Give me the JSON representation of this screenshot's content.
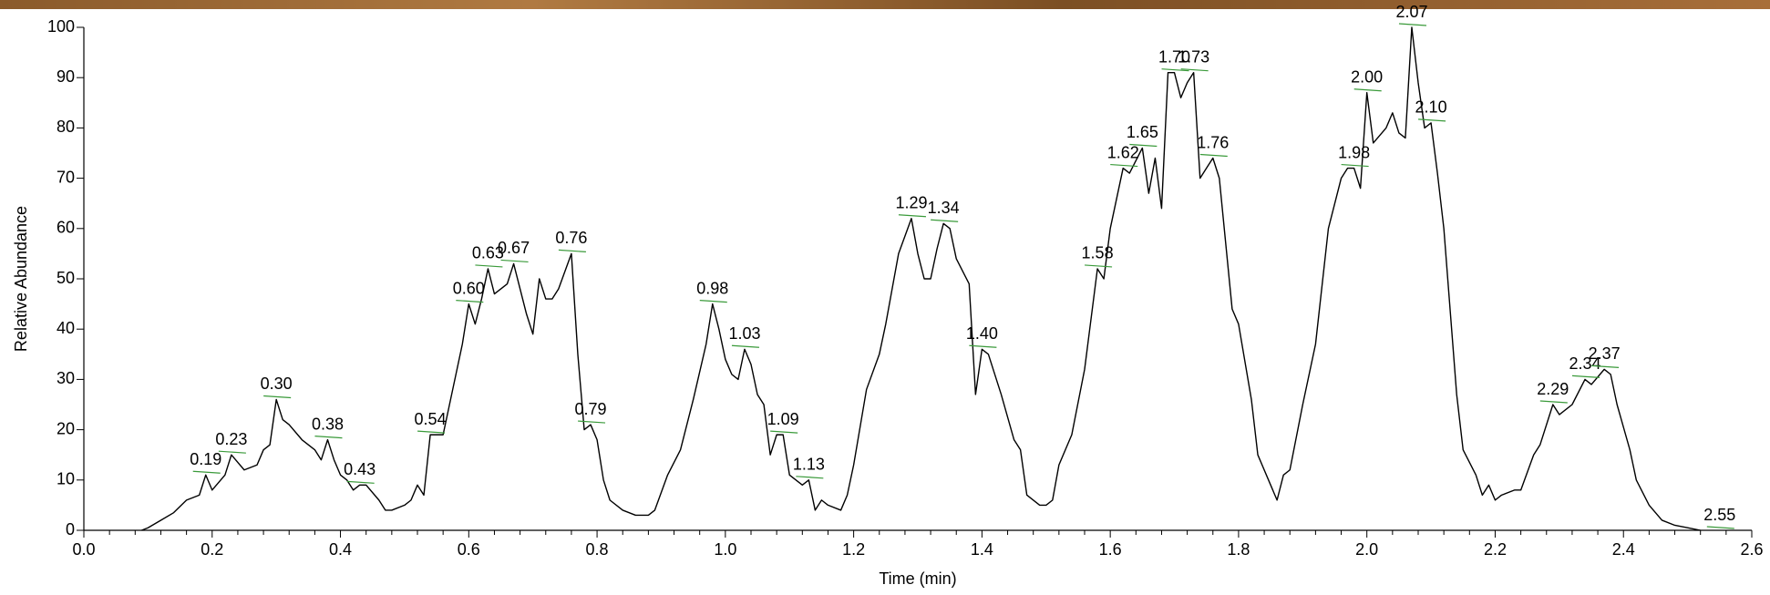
{
  "chart_data": {
    "type": "line",
    "xlabel": "Time (min)",
    "ylabel": "Relative Abundance",
    "color": "#000000",
    "xlim": [
      0,
      2.6
    ],
    "xticks": [
      {
        "value": 0,
        "label": "0.0"
      },
      0.2,
      0.4,
      0.6,
      0.8,
      {
        "value": 1,
        "label": "1.0"
      },
      1.2,
      1.4,
      1.6,
      1.8,
      {
        "value": 2,
        "label": "2.0"
      },
      2.2,
      2.4,
      2.6
    ],
    "ylim": [
      0,
      100
    ],
    "yticks": [
      0,
      10,
      20,
      30,
      40,
      50,
      60,
      70,
      80,
      90,
      100
    ],
    "x": [
      0.09,
      0.1,
      0.12,
      0.14,
      0.16,
      0.18,
      0.19,
      0.2,
      0.22,
      0.23,
      0.25,
      0.27,
      0.28,
      0.29,
      0.3,
      0.31,
      0.32,
      0.34,
      0.36,
      0.37,
      0.38,
      0.39,
      0.4,
      0.41,
      0.42,
      0.43,
      0.44,
      0.46,
      0.47,
      0.48,
      0.5,
      0.51,
      0.52,
      0.53,
      0.54,
      0.55,
      0.56,
      0.57,
      0.59,
      0.6,
      0.61,
      0.62,
      0.63,
      0.64,
      0.66,
      0.67,
      0.68,
      0.69,
      0.7,
      0.71,
      0.72,
      0.73,
      0.74,
      0.76,
      0.77,
      0.78,
      0.79,
      0.8,
      0.81,
      0.82,
      0.84,
      0.86,
      0.88,
      0.89,
      0.91,
      0.93,
      0.95,
      0.97,
      0.98,
      0.99,
      1.0,
      1.01,
      1.02,
      1.03,
      1.04,
      1.05,
      1.06,
      1.07,
      1.08,
      1.09,
      1.1,
      1.11,
      1.12,
      1.13,
      1.14,
      1.15,
      1.16,
      1.18,
      1.19,
      1.2,
      1.22,
      1.24,
      1.25,
      1.27,
      1.29,
      1.3,
      1.31,
      1.32,
      1.33,
      1.34,
      1.35,
      1.36,
      1.38,
      1.39,
      1.4,
      1.41,
      1.43,
      1.45,
      1.46,
      1.47,
      1.49,
      1.5,
      1.51,
      1.52,
      1.54,
      1.56,
      1.58,
      1.59,
      1.6,
      1.61,
      1.62,
      1.63,
      1.65,
      1.66,
      1.67,
      1.68,
      1.69,
      1.7,
      1.71,
      1.72,
      1.73,
      1.74,
      1.75,
      1.76,
      1.77,
      1.79,
      1.8,
      1.82,
      1.83,
      1.85,
      1.86,
      1.87,
      1.88,
      1.9,
      1.92,
      1.94,
      1.96,
      1.97,
      1.98,
      1.99,
      2.0,
      2.01,
      2.03,
      2.04,
      2.05,
      2.06,
      2.07,
      2.08,
      2.09,
      2.1,
      2.11,
      2.12,
      2.14,
      2.15,
      2.17,
      2.18,
      2.19,
      2.2,
      2.21,
      2.23,
      2.24,
      2.26,
      2.27,
      2.29,
      2.3,
      2.32,
      2.34,
      2.35,
      2.37,
      2.38,
      2.39,
      2.41,
      2.42,
      2.44,
      2.46,
      2.48,
      2.5,
      2.52
    ],
    "values": [
      0,
      0.5,
      2,
      3.5,
      6,
      7,
      11,
      8,
      11,
      15,
      12,
      13,
      16,
      17,
      26,
      22,
      21,
      18,
      16,
      14,
      18,
      14,
      11,
      10,
      8,
      9,
      9,
      6,
      4,
      4,
      5,
      6,
      9,
      7,
      19,
      19,
      19,
      25,
      37,
      45,
      41,
      46,
      52,
      47,
      49,
      53,
      48,
      43,
      39,
      50,
      46,
      46,
      48,
      55,
      35,
      20,
      21,
      18,
      10,
      6,
      4,
      3,
      3,
      4,
      11,
      16,
      26,
      37,
      45,
      40,
      34,
      31,
      30,
      36,
      33,
      27,
      25,
      15,
      19,
      19,
      11,
      10,
      9,
      10,
      4,
      6,
      5,
      4,
      7,
      13,
      28,
      35,
      41,
      55,
      62,
      55,
      50,
      50,
      56,
      61,
      60,
      54,
      49,
      27,
      36,
      35,
      27,
      18,
      16,
      7,
      5,
      5,
      6,
      13,
      19,
      32,
      52,
      50,
      60,
      66,
      72,
      71,
      76,
      67,
      74,
      64,
      91,
      91,
      86,
      89,
      91,
      70,
      72,
      74,
      70,
      44,
      41,
      26,
      15,
      9,
      6,
      11,
      12,
      25,
      37,
      60,
      70,
      72,
      72,
      68,
      87,
      77,
      80,
      83,
      79,
      78,
      100,
      89,
      80,
      81,
      71,
      60,
      27,
      16,
      11,
      7,
      9,
      6,
      7,
      8,
      8,
      15,
      17,
      25,
      23,
      25,
      30,
      29,
      32,
      31,
      25,
      16,
      10,
      5,
      2,
      1,
      0.5,
      0
    ],
    "annotations": [
      {
        "x": 0.19,
        "y": 11,
        "text": "0.19"
      },
      {
        "x": 0.23,
        "y": 15,
        "text": "0.23"
      },
      {
        "x": 0.3,
        "y": 26,
        "text": "0.30"
      },
      {
        "x": 0.38,
        "y": 18,
        "text": "0.38"
      },
      {
        "x": 0.43,
        "y": 9,
        "text": "0.43"
      },
      {
        "x": 0.54,
        "y": 19,
        "text": "0.54"
      },
      {
        "x": 0.6,
        "y": 45,
        "text": "0.60"
      },
      {
        "x": 0.63,
        "y": 52,
        "text": "0.63"
      },
      {
        "x": 0.67,
        "y": 53,
        "text": "0.67"
      },
      {
        "x": 0.76,
        "y": 55,
        "text": "0.76"
      },
      {
        "x": 0.79,
        "y": 21,
        "text": "0.79"
      },
      {
        "x": 0.98,
        "y": 45,
        "text": "0.98"
      },
      {
        "x": 1.03,
        "y": 36,
        "text": "1.03"
      },
      {
        "x": 1.09,
        "y": 19,
        "text": "1.09"
      },
      {
        "x": 1.13,
        "y": 10,
        "text": "1.13"
      },
      {
        "x": 1.29,
        "y": 62,
        "text": "1.29"
      },
      {
        "x": 1.34,
        "y": 61,
        "text": "1.34"
      },
      {
        "x": 1.4,
        "y": 36,
        "text": "1.40"
      },
      {
        "x": 1.58,
        "y": 52,
        "text": "1.58"
      },
      {
        "x": 1.62,
        "y": 72,
        "text": "1.62"
      },
      {
        "x": 1.65,
        "y": 76,
        "text": "1.65"
      },
      {
        "x": 1.7,
        "y": 91,
        "text": "1.70"
      },
      {
        "x": 1.73,
        "y": 91,
        "text": "1.73"
      },
      {
        "x": 1.76,
        "y": 74,
        "text": "1.76"
      },
      {
        "x": 1.98,
        "y": 72,
        "text": "1.98"
      },
      {
        "x": 2,
        "y": 87,
        "text": "2.00"
      },
      {
        "x": 2.07,
        "y": 100,
        "text": "2.07"
      },
      {
        "x": 2.1,
        "y": 81,
        "text": "2.10"
      },
      {
        "x": 2.29,
        "y": 25,
        "text": "2.29"
      },
      {
        "x": 2.34,
        "y": 30,
        "text": "2.34"
      },
      {
        "x": 2.37,
        "y": 32,
        "text": "2.37"
      },
      {
        "x": 2.55,
        "y": 0,
        "text": "2.55"
      }
    ]
  }
}
